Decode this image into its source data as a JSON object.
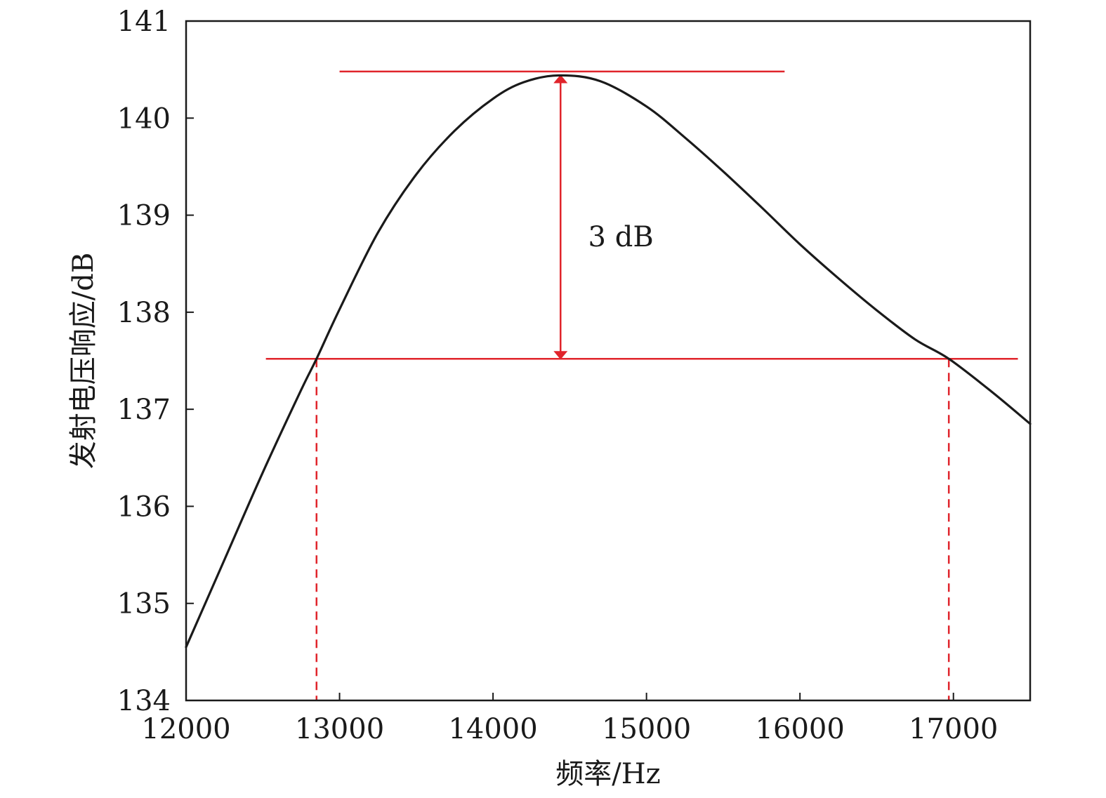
{
  "chart_data": {
    "type": "line",
    "title": "",
    "xlabel": "频率/Hz",
    "ylabel": "发射电压响应/dB",
    "xlim": [
      12000,
      17500
    ],
    "ylim": [
      134,
      141
    ],
    "x_ticks": [
      12000,
      13000,
      14000,
      15000,
      16000,
      17000
    ],
    "y_ticks": [
      134,
      135,
      136,
      137,
      138,
      139,
      140,
      141
    ],
    "grid": false,
    "legend": "none",
    "series": [
      {
        "color": "#1a1a1a",
        "x": [
          12000,
          12250,
          12500,
          12750,
          12850,
          13000,
          13250,
          13500,
          13750,
          14000,
          14200,
          14430,
          14700,
          15000,
          15250,
          15500,
          15750,
          16000,
          16250,
          16500,
          16750,
          16970,
          17250,
          17500
        ],
        "y": [
          134.55,
          135.45,
          136.35,
          137.2,
          137.52,
          138.03,
          138.82,
          139.42,
          139.87,
          140.2,
          140.37,
          140.44,
          140.38,
          140.12,
          139.8,
          139.45,
          139.08,
          138.7,
          138.35,
          138.02,
          137.72,
          137.52,
          137.18,
          136.85
        ]
      }
    ],
    "annotations": {
      "peak_line": {
        "y": 140.48,
        "x_start": 13000,
        "x_end": 15900,
        "color": "#e0242b"
      },
      "band_line": {
        "y": 137.52,
        "x_start": 12520,
        "x_end": 17420,
        "color": "#e0242b"
      },
      "arrow": {
        "x": 14440,
        "y_top": 140.44,
        "y_bottom": 137.52,
        "color": "#e0242b"
      },
      "dashed_lines": [
        {
          "x": 12850,
          "y_top": 137.52,
          "color": "#e0242b"
        },
        {
          "x": 16970,
          "y_top": 137.52,
          "color": "#e0242b"
        }
      ],
      "label": {
        "text": "3 dB",
        "x": 14650,
        "y": 138.68
      }
    }
  }
}
